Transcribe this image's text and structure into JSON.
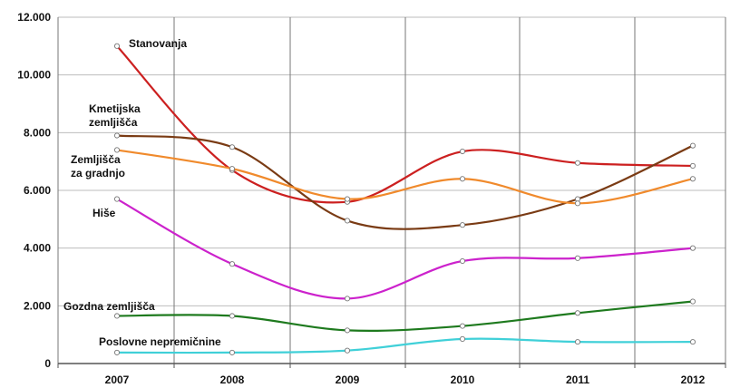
{
  "chart_data": {
    "type": "line",
    "title": "",
    "xlabel": "",
    "ylabel": "",
    "x": [
      "2007",
      "2008",
      "2009",
      "2010",
      "2011",
      "2012"
    ],
    "y_ticks": [
      "0",
      "2.000",
      "4.000",
      "6.000",
      "8.000",
      "10.000",
      "12.000"
    ],
    "ylim": [
      0,
      12000
    ],
    "grid": true,
    "legend": "inline labels",
    "series": [
      {
        "name": "Stanovanja",
        "label_lines": [
          "Stanovanja"
        ],
        "color": "#cc2020",
        "values": [
          11000,
          6700,
          5600,
          7350,
          6950,
          6850
        ]
      },
      {
        "name": "Kmetijska zemljišča",
        "label_lines": [
          "Kmetijska",
          "zemljišča"
        ],
        "color": "#7a3b14",
        "values": [
          7900,
          7500,
          4950,
          4800,
          5700,
          7550
        ]
      },
      {
        "name": "Zemljišča za gradnjo",
        "label_lines": [
          "Zemljišča",
          "za gradnjo"
        ],
        "color": "#f08a2c",
        "values": [
          7400,
          6750,
          5700,
          6400,
          5550,
          6400
        ]
      },
      {
        "name": "Hiše",
        "label_lines": [
          "Hiše"
        ],
        "color": "#cc22cc",
        "values": [
          5700,
          3450,
          2250,
          3550,
          3650,
          4000
        ]
      },
      {
        "name": "Gozdna zemljišča",
        "label_lines": [
          "Gozdna zemljišča"
        ],
        "color": "#1e7a1e",
        "values": [
          1650,
          1650,
          1150,
          1300,
          1750,
          2150
        ]
      },
      {
        "name": "Poslovne nepremičnine",
        "label_lines": [
          "Poslovne nepremičnine"
        ],
        "color": "#40d0d8",
        "values": [
          380,
          380,
          450,
          850,
          750,
          750
        ]
      }
    ]
  }
}
